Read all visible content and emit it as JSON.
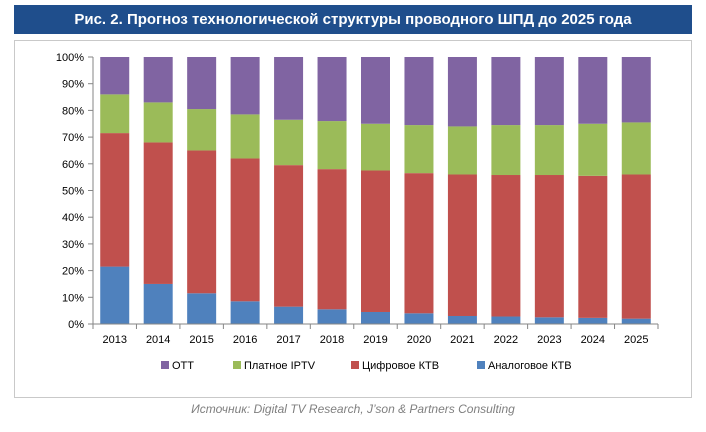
{
  "title": "Рис. 2. Прогноз технологической структуры проводного ШПД до 2025 года",
  "source": "Источник: Digital TV Research, J’son & Partners Consulting",
  "chart_data": {
    "type": "bar",
    "stacked": true,
    "categories": [
      "2013",
      "2014",
      "2015",
      "2016",
      "2017",
      "2018",
      "2019",
      "2020",
      "2021",
      "2022",
      "2023",
      "2024",
      "2025"
    ],
    "series": [
      {
        "name": "Аналоговое КТВ",
        "color": "#4f81bd",
        "values": [
          21.5,
          15,
          11.5,
          8.5,
          6.5,
          5.5,
          4.5,
          4,
          3,
          2.8,
          2.5,
          2.3,
          2
        ]
      },
      {
        "name": "Цифровое КТВ",
        "color": "#c0504d",
        "values": [
          50,
          53,
          53.5,
          53.5,
          53,
          52.5,
          53,
          52.5,
          53,
          53,
          53.3,
          53.2,
          54
        ]
      },
      {
        "name": "Платное IPTV",
        "color": "#9bbb59",
        "values": [
          14.5,
          15,
          15.5,
          16.5,
          17,
          18,
          17.5,
          18,
          18,
          18.7,
          18.7,
          19.5,
          19.5
        ]
      },
      {
        "name": "OTT",
        "color": "#8064a2",
        "values": [
          14,
          17,
          19.5,
          21.5,
          23.5,
          24,
          25,
          25.5,
          26,
          25.5,
          25.5,
          25,
          24.5
        ]
      }
    ],
    "legend_order": [
      "OTT",
      "Платное IPTV",
      "Цифровое КТВ",
      "Аналоговое КТВ"
    ],
    "y_ticks": [
      "0%",
      "10%",
      "20%",
      "30%",
      "40%",
      "50%",
      "60%",
      "70%",
      "80%",
      "90%",
      "100%"
    ],
    "ylim": [
      0,
      100
    ],
    "grid": false,
    "legend_position": "bottom"
  }
}
